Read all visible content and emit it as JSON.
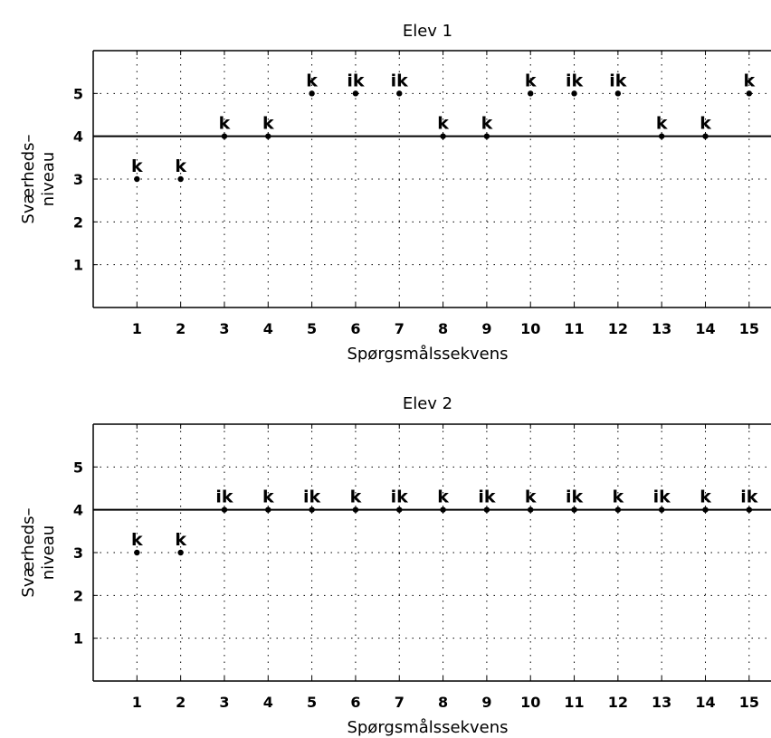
{
  "chart_data": [
    {
      "type": "scatter",
      "title": "Elev 1",
      "xlabel": "Spørgsmålssekvens",
      "ylabel_lines": [
        "Sværheds–",
        "niveau"
      ],
      "x": [
        1,
        2,
        3,
        4,
        5,
        6,
        7,
        8,
        9,
        10,
        11,
        12,
        13,
        14,
        15
      ],
      "y": [
        3,
        3,
        4,
        4,
        5,
        5,
        5,
        4,
        4,
        5,
        5,
        5,
        4,
        4,
        5
      ],
      "point_labels": [
        "k",
        "k",
        "k",
        "k",
        "k",
        "ik",
        "ik",
        "k",
        "k",
        "k",
        "ik",
        "ik",
        "k",
        "k",
        "k"
      ],
      "xticks": [
        1,
        2,
        3,
        4,
        5,
        6,
        7,
        8,
        9,
        10,
        11,
        12,
        13,
        14,
        15
      ],
      "yticks": [
        1,
        2,
        3,
        4,
        5
      ],
      "xlim": [
        0,
        15.5
      ],
      "ylim": [
        0,
        6
      ],
      "reference_line_y": 4,
      "grid": true
    },
    {
      "type": "scatter",
      "title": "Elev 2",
      "xlabel": "Spørgsmålssekvens",
      "ylabel_lines": [
        "Sværheds–",
        "niveau"
      ],
      "x": [
        1,
        2,
        3,
        4,
        5,
        6,
        7,
        8,
        9,
        10,
        11,
        12,
        13,
        14,
        15
      ],
      "y": [
        3,
        3,
        4,
        4,
        4,
        4,
        4,
        4,
        4,
        4,
        4,
        4,
        4,
        4,
        4
      ],
      "point_labels": [
        "k",
        "k",
        "ik",
        "k",
        "ik",
        "k",
        "ik",
        "k",
        "ik",
        "k",
        "ik",
        "k",
        "ik",
        "k",
        "ik"
      ],
      "xticks": [
        1,
        2,
        3,
        4,
        5,
        6,
        7,
        8,
        9,
        10,
        11,
        12,
        13,
        14,
        15
      ],
      "yticks": [
        1,
        2,
        3,
        4,
        5
      ],
      "xlim": [
        0,
        15.5
      ],
      "ylim": [
        0,
        6
      ],
      "reference_line_y": 4,
      "grid": true
    }
  ]
}
